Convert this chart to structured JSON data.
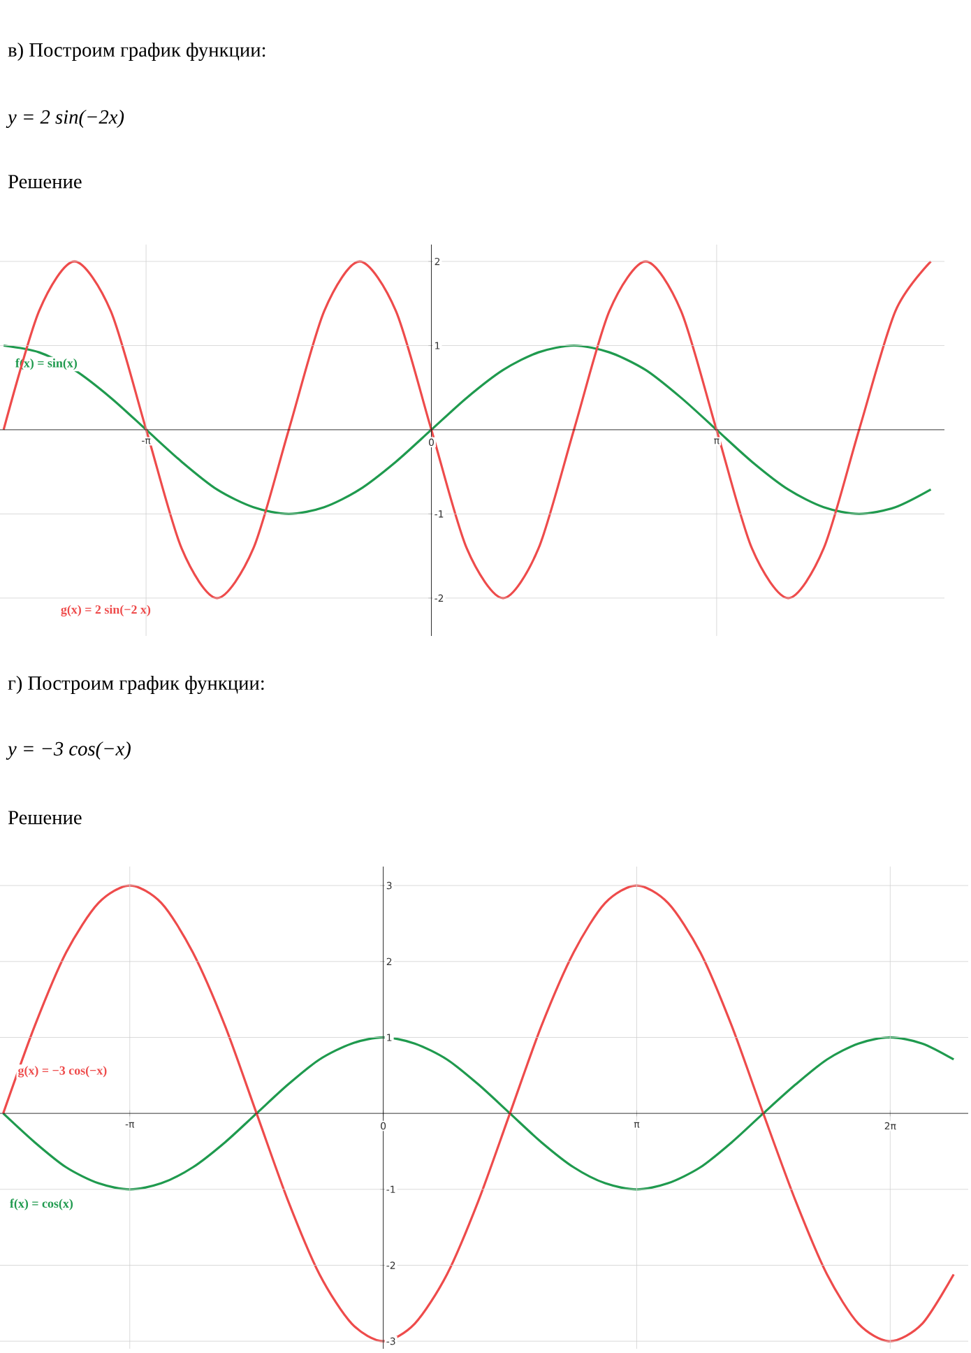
{
  "chart_data": [
    {
      "type": "line",
      "title": "в) Построим график функции:",
      "subtitle": "y = 2 sin(−2x)",
      "annotations": [
        "Решение"
      ],
      "xlim": [
        -4.75,
        5.65
      ],
      "ylim": [
        -2.45,
        2.2
      ],
      "xticks": [
        {
          "value": -3.1416,
          "label": "-π"
        },
        0,
        {
          "value": 3.1416,
          "label": "π"
        }
      ],
      "yticks": [
        -2,
        -1,
        1,
        2
      ],
      "grid": true,
      "series": [
        {
          "name": "f(x) = sin(x)",
          "color": "#1f9a4e",
          "x": [
            -4.71,
            -4.32,
            -3.93,
            -3.53,
            -3.14,
            -2.75,
            -2.36,
            -1.96,
            -1.57,
            -1.18,
            -0.79,
            -0.39,
            0,
            0.39,
            0.79,
            1.18,
            1.57,
            1.96,
            2.36,
            2.75,
            3.14,
            3.53,
            3.93,
            4.32,
            4.71,
            5.11,
            5.5
          ],
          "values": [
            1,
            0.92,
            0.71,
            0.38,
            0,
            -0.38,
            -0.71,
            -0.92,
            -1,
            -0.92,
            -0.71,
            -0.38,
            0,
            0.38,
            0.71,
            0.92,
            1,
            0.92,
            0.71,
            0.38,
            0,
            -0.38,
            -0.71,
            -0.92,
            -1,
            -0.92,
            -0.71
          ]
        },
        {
          "name": "g(x) = 2 sin(−2 x)",
          "color": "#ee4b4b",
          "x": [
            -4.71,
            -4.32,
            -3.93,
            -3.53,
            -3.14,
            -2.75,
            -2.36,
            -1.96,
            -1.57,
            -1.18,
            -0.79,
            -0.39,
            0,
            0.39,
            0.79,
            1.18,
            1.57,
            1.96,
            2.36,
            2.75,
            3.14,
            3.53,
            3.93,
            4.32,
            4.71,
            5.11,
            5.5
          ],
          "values": [
            0,
            1.41,
            2,
            1.41,
            0,
            -1.41,
            -2,
            -1.41,
            0,
            1.41,
            2,
            1.41,
            0,
            -1.41,
            -2,
            -1.41,
            0,
            1.41,
            2,
            1.41,
            0,
            -1.41,
            -2,
            -1.41,
            0,
            1.41,
            2
          ]
        }
      ]
    },
    {
      "type": "line",
      "title": "г) Построим график функции:",
      "subtitle": "y = −3 cos(−x)",
      "annotations": [
        "Решение"
      ],
      "xlim": [
        -4.75,
        7.25
      ],
      "ylim": [
        -3.1,
        3.25
      ],
      "xticks": [
        {
          "value": -3.1416,
          "label": "-π"
        },
        0,
        {
          "value": 3.1416,
          "label": "π"
        },
        {
          "value": 6.2832,
          "label": "2π"
        }
      ],
      "yticks": [
        -3,
        -2,
        -1,
        1,
        2,
        3
      ],
      "grid": true,
      "series": [
        {
          "name": "f(x) = cos(x)",
          "color": "#1f9a4e",
          "x": [
            -4.71,
            -4.32,
            -3.93,
            -3.53,
            -3.14,
            -2.75,
            -2.36,
            -1.96,
            -1.57,
            -1.18,
            -0.79,
            -0.39,
            0,
            0.39,
            0.79,
            1.18,
            1.57,
            1.96,
            2.36,
            2.75,
            3.14,
            3.53,
            3.93,
            4.32,
            4.71,
            5.11,
            5.5,
            5.89,
            6.28,
            6.68,
            7.07
          ],
          "values": [
            0,
            -0.38,
            -0.71,
            -0.92,
            -1,
            -0.92,
            -0.71,
            -0.38,
            0,
            0.38,
            0.71,
            0.92,
            1,
            0.92,
            0.71,
            0.38,
            0,
            -0.38,
            -0.71,
            -0.92,
            -1,
            -0.92,
            -0.71,
            -0.38,
            0,
            0.38,
            0.71,
            0.92,
            1,
            0.92,
            0.71
          ]
        },
        {
          "name": "g(x) = −3 cos(−x)",
          "color": "#ee4b4b",
          "x": [
            -4.71,
            -4.32,
            -3.93,
            -3.53,
            -3.14,
            -2.75,
            -2.36,
            -1.96,
            -1.57,
            -1.18,
            -0.79,
            -0.39,
            0,
            0.39,
            0.79,
            1.18,
            1.57,
            1.96,
            2.36,
            2.75,
            3.14,
            3.53,
            3.93,
            4.32,
            4.71,
            5.11,
            5.5,
            5.89,
            6.28,
            6.68,
            7.07
          ],
          "values": [
            0,
            1.15,
            2.12,
            2.77,
            3,
            2.77,
            2.12,
            1.15,
            0,
            -1.15,
            -2.12,
            -2.77,
            -3,
            -2.77,
            -2.12,
            -1.15,
            0,
            1.15,
            2.12,
            2.77,
            3,
            2.77,
            2.12,
            1.15,
            0,
            -1.15,
            -2.12,
            -2.77,
            -3,
            -2.77,
            -2.12
          ]
        }
      ]
    }
  ]
}
